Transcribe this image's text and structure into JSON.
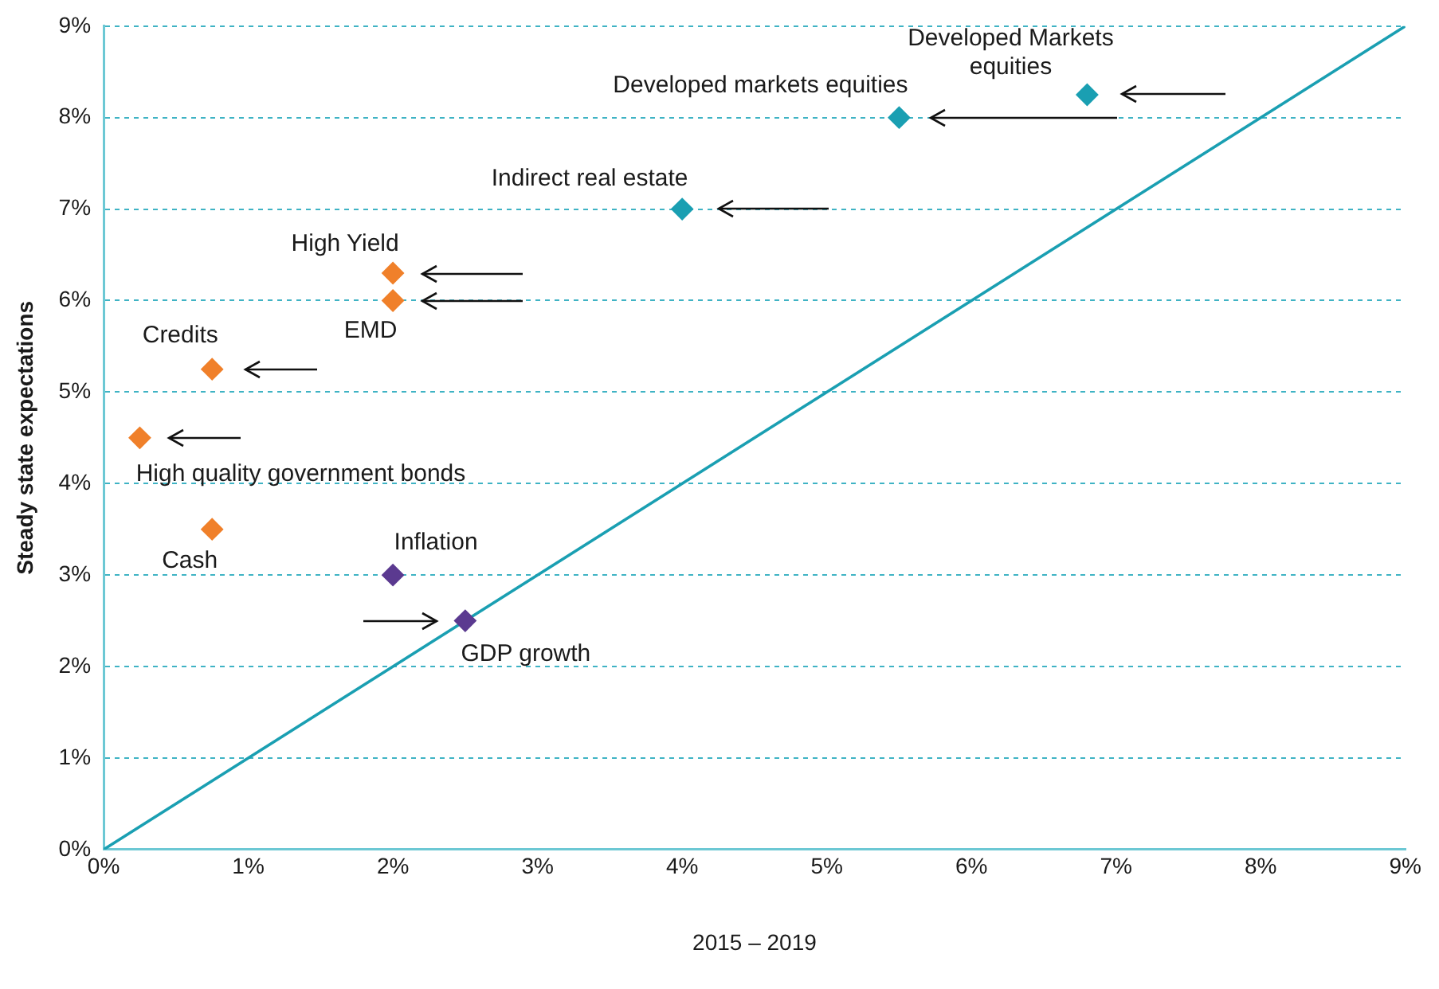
{
  "chart_data": {
    "type": "scatter",
    "xlabel": "2015 – 2019",
    "ylabel": "Steady state expectations",
    "xlim": [
      0,
      9
    ],
    "ylim": [
      0,
      9
    ],
    "xticks": [
      {
        "value": 0,
        "label": "0%"
      },
      {
        "value": 1,
        "label": "1%"
      },
      {
        "value": 2,
        "label": "2%"
      },
      {
        "value": 3,
        "label": "3%"
      },
      {
        "value": 4,
        "label": "4%"
      },
      {
        "value": 5,
        "label": "5%"
      },
      {
        "value": 6,
        "label": "6%"
      },
      {
        "value": 7,
        "label": "7%"
      },
      {
        "value": 8,
        "label": "8%"
      },
      {
        "value": 9,
        "label": "9%"
      }
    ],
    "yticks": [
      {
        "value": 0,
        "label": "0%"
      },
      {
        "value": 1,
        "label": "1%"
      },
      {
        "value": 2,
        "label": "2%"
      },
      {
        "value": 3,
        "label": "3%"
      },
      {
        "value": 4,
        "label": "4%"
      },
      {
        "value": 5,
        "label": "5%"
      },
      {
        "value": 6,
        "label": "6%"
      },
      {
        "value": 7,
        "label": "7%"
      },
      {
        "value": 8,
        "label": "8%"
      },
      {
        "value": 9,
        "label": "9%"
      }
    ],
    "grid": "y",
    "legend": false,
    "marker": "diamond",
    "series": [
      {
        "color": "#1a9fb2",
        "x": [
          6.8,
          5.5,
          4.0
        ],
        "values": [
          8.25,
          8.0,
          7.0
        ]
      },
      {
        "color": "#f0802a",
        "x": [
          2.0,
          2.0,
          0.75,
          0.25,
          0.75
        ],
        "values": [
          6.3,
          6.0,
          5.25,
          4.5,
          3.5
        ]
      },
      {
        "color": "#5b3a90",
        "x": [
          2.0,
          2.5
        ],
        "values": [
          3.0,
          2.5
        ]
      },
      {
        "type": "line",
        "color": "#1a9fb2",
        "marker": "none",
        "line_style": "solid",
        "x": [
          0,
          9
        ],
        "values": [
          0,
          9
        ]
      }
    ],
    "annotations": [
      {
        "text": "Developed Markets\nequities",
        "x": 6.8,
        "y": 8.25
      },
      {
        "text": "Developed markets equities",
        "x": 5.5,
        "y": 8.0
      },
      {
        "text": "Indirect real estate",
        "x": 4.0,
        "y": 7.0
      },
      {
        "text": "High Yield",
        "x": 2.0,
        "y": 6.3
      },
      {
        "text": "EMD",
        "x": 2.0,
        "y": 6.0
      },
      {
        "text": "Credits",
        "x": 0.75,
        "y": 5.25
      },
      {
        "text": "High quality government bonds",
        "x": 0.25,
        "y": 4.5
      },
      {
        "text": "Cash",
        "x": 0.75,
        "y": 3.5
      },
      {
        "text": "Inflation",
        "x": 2.0,
        "y": 3.0
      },
      {
        "text": "GDP growth",
        "x": 2.5,
        "y": 2.5
      }
    ]
  }
}
